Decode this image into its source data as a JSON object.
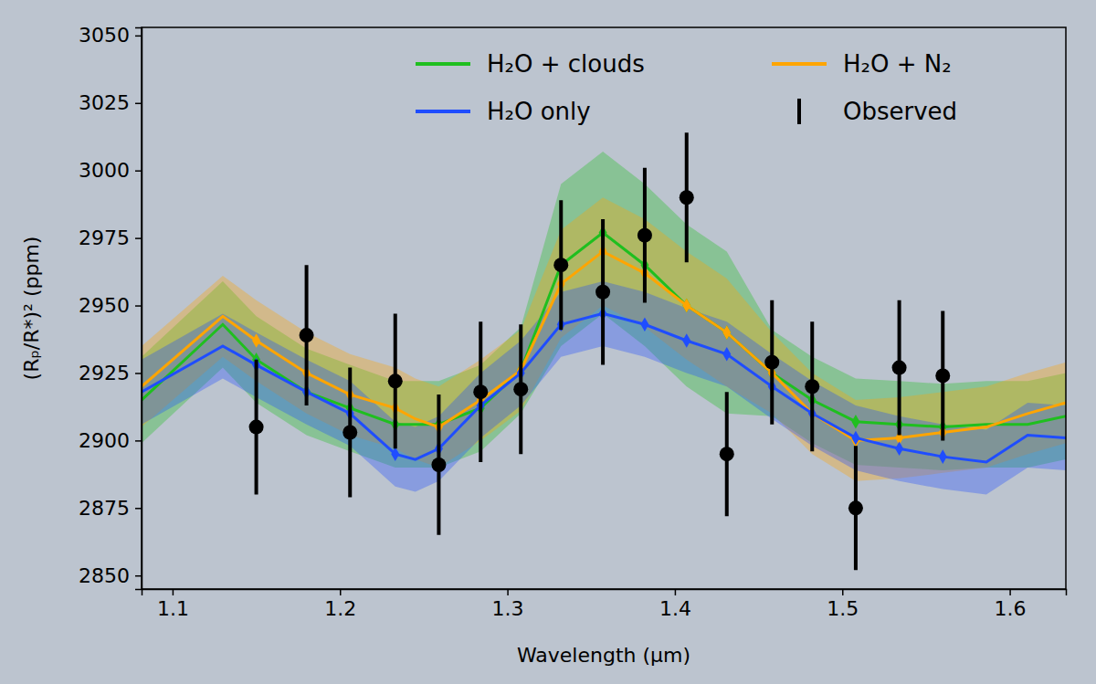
{
  "chart_data": {
    "type": "line",
    "x_label": "Wavelength (μm)",
    "y_label": "(Rₚ/R*)² (ppm)",
    "xlim": [
      1.0815,
      1.6335
    ],
    "xticks": [
      1.1,
      1.2,
      1.3,
      1.4,
      1.5,
      1.6
    ],
    "ylim": [
      2845,
      3053
    ],
    "yticks": [
      2850,
      2875,
      2900,
      2925,
      2950,
      2975,
      3000,
      3025,
      3050
    ],
    "grid": false,
    "legend": "upper right",
    "series": [
      {
        "name": "H₂O + clouds",
        "type": "line",
        "color": "#1fbf1f",
        "marker": "diamond",
        "x": [
          1.0815,
          1.13,
          1.15,
          1.18,
          1.206,
          1.233,
          1.245,
          1.259,
          1.284,
          1.308,
          1.332,
          1.357,
          1.382,
          1.407,
          1.431,
          1.458,
          1.482,
          1.508,
          1.534,
          1.56,
          1.586,
          1.6107,
          1.6335
        ],
        "values": [
          2915,
          2943,
          2930,
          2918,
          2912,
          2906,
          2906,
          2906,
          2912,
          2926,
          2965,
          2977,
          2965,
          2950,
          2940,
          2925,
          2915,
          2907,
          2906,
          2905,
          2906,
          2906,
          2909
        ],
        "lower": [
          2899,
          2927,
          2914,
          2902,
          2896,
          2890,
          2890,
          2890,
          2896,
          2910,
          2935,
          2947,
          2935,
          2920,
          2910,
          2909,
          2899,
          2891,
          2890,
          2889,
          2890,
          2890,
          2893
        ],
        "upper": [
          2931,
          2959,
          2946,
          2934,
          2928,
          2922,
          2922,
          2922,
          2928,
          2942,
          2995,
          3007,
          2995,
          2980,
          2970,
          2941,
          2931,
          2923,
          2922,
          2921,
          2922,
          2922,
          2925
        ],
        "binned_values": [
          2930,
          2918,
          2912,
          2906,
          2906,
          2912,
          2926,
          2965,
          2977,
          2965,
          2950,
          2940,
          2925,
          2915,
          2907,
          2906,
          2905
        ]
      },
      {
        "name": "H₂O + N₂",
        "type": "line",
        "color": "#ffa500",
        "marker": "diamond",
        "x": [
          1.0815,
          1.13,
          1.15,
          1.18,
          1.206,
          1.233,
          1.245,
          1.259,
          1.284,
          1.308,
          1.332,
          1.357,
          1.382,
          1.407,
          1.431,
          1.458,
          1.482,
          1.508,
          1.534,
          1.56,
          1.586,
          1.6107,
          1.6335
        ],
        "values": [
          2920,
          2946,
          2937,
          2925,
          2917,
          2912,
          2908,
          2905,
          2915,
          2926,
          2958,
          2970,
          2962,
          2950,
          2940,
          2925,
          2910,
          2900,
          2901,
          2903,
          2905,
          2910,
          2914
        ],
        "lower": [
          2905,
          2931,
          2922,
          2910,
          2902,
          2897,
          2893,
          2890,
          2900,
          2911,
          2938,
          2950,
          2942,
          2930,
          2920,
          2910,
          2895,
          2885,
          2886,
          2888,
          2890,
          2895,
          2899
        ],
        "upper": [
          2935,
          2961,
          2952,
          2940,
          2932,
          2927,
          2923,
          2920,
          2930,
          2941,
          2978,
          2990,
          2982,
          2970,
          2960,
          2940,
          2925,
          2915,
          2916,
          2918,
          2920,
          2925,
          2929
        ],
        "binned_values": [
          2937,
          2925,
          2917,
          2912,
          2905,
          2915,
          2926,
          2958,
          2970,
          2962,
          2950,
          2940,
          2925,
          2910,
          2900,
          2901,
          2903
        ]
      },
      {
        "name": "H₂O only",
        "type": "line",
        "color": "#1f4dff",
        "marker": "diamond",
        "x": [
          1.0815,
          1.13,
          1.15,
          1.18,
          1.206,
          1.233,
          1.245,
          1.259,
          1.284,
          1.308,
          1.332,
          1.357,
          1.382,
          1.407,
          1.431,
          1.458,
          1.482,
          1.508,
          1.534,
          1.56,
          1.586,
          1.6107,
          1.6335
        ],
        "values": [
          2918,
          2935,
          2928,
          2918,
          2910,
          2895,
          2893,
          2897,
          2913,
          2925,
          2943,
          2947,
          2943,
          2937,
          2932,
          2920,
          2910,
          2901,
          2897,
          2894,
          2892,
          2902,
          2901
        ],
        "lower": [
          2906,
          2923,
          2916,
          2906,
          2898,
          2883,
          2881,
          2885,
          2901,
          2913,
          2931,
          2935,
          2931,
          2925,
          2920,
          2908,
          2898,
          2889,
          2885,
          2882,
          2880,
          2890,
          2889
        ],
        "upper": [
          2930,
          2947,
          2940,
          2930,
          2922,
          2907,
          2905,
          2909,
          2925,
          2937,
          2955,
          2959,
          2955,
          2949,
          2944,
          2932,
          2922,
          2913,
          2909,
          2906,
          2904,
          2914,
          2913
        ],
        "binned_values": [
          2928,
          2918,
          2910,
          2895,
          2897,
          2913,
          2925,
          2943,
          2947,
          2943,
          2937,
          2932,
          2920,
          2910,
          2901,
          2897,
          2894
        ]
      },
      {
        "name": "Observed",
        "type": "scatter",
        "color": "#000000",
        "marker": "circle",
        "x": [
          1.15,
          1.18,
          1.206,
          1.233,
          1.259,
          1.284,
          1.308,
          1.332,
          1.357,
          1.382,
          1.407,
          1.431,
          1.458,
          1.482,
          1.508,
          1.534,
          1.56
        ],
        "values": [
          2905,
          2939,
          2903,
          2922,
          2891,
          2918,
          2919,
          2965,
          2955,
          2976,
          2990,
          2895,
          2929,
          2920,
          2875,
          2927,
          2924
        ],
        "errors": [
          25,
          26,
          24,
          25,
          26,
          26,
          24,
          24,
          27,
          25,
          24,
          23,
          23,
          24,
          23,
          25,
          24
        ]
      }
    ]
  }
}
